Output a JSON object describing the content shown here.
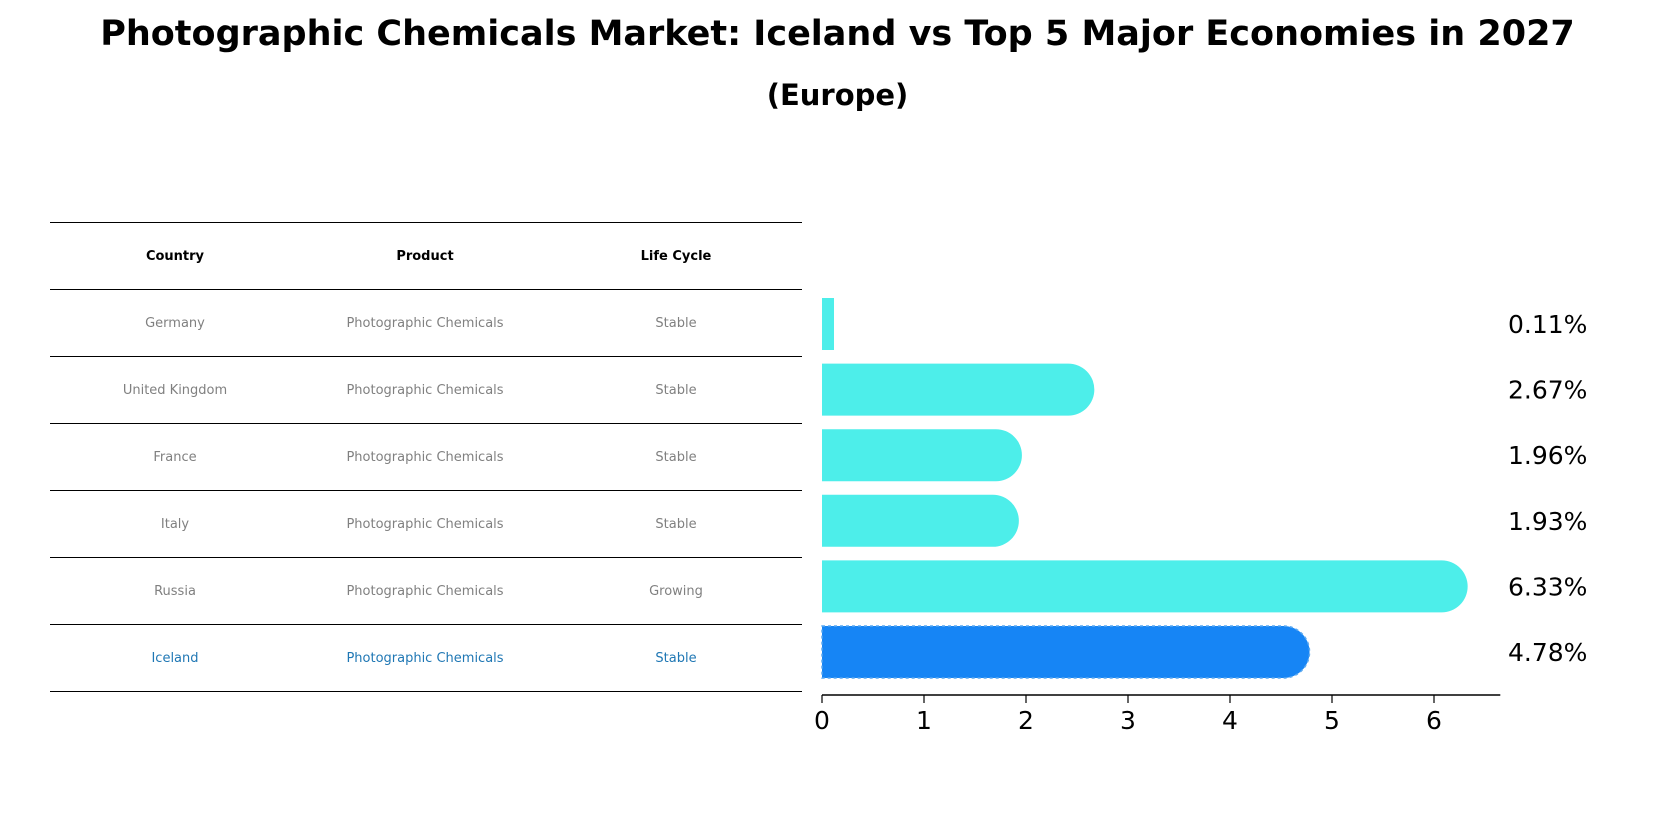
{
  "title": "Photographic Chemicals Market: Iceland vs Top 5 Major Economies in 2027",
  "subtitle": "(Europe)",
  "table": {
    "headers": [
      "Country",
      "Product",
      "Life Cycle"
    ],
    "rows": [
      [
        "Germany",
        "Photographic Chemicals",
        "Stable"
      ],
      [
        "United Kingdom",
        "Photographic Chemicals",
        "Stable"
      ],
      [
        "France",
        "Photographic Chemicals",
        "Stable"
      ],
      [
        "Italy",
        "Photographic Chemicals",
        "Stable"
      ],
      [
        "Russia",
        "Photographic Chemicals",
        "Growing"
      ],
      [
        "Iceland",
        "Photographic Chemicals",
        "Stable"
      ]
    ],
    "highlight_color": "#1f77b4",
    "text_color": "#808080"
  },
  "chart_data": {
    "type": "bar",
    "orientation": "horizontal",
    "categories": [
      "Germany",
      "United Kingdom",
      "France",
      "Italy",
      "Russia",
      "Iceland"
    ],
    "values": [
      0.11,
      2.67,
      1.96,
      1.93,
      6.33,
      4.78
    ],
    "value_labels": [
      "0.11%",
      "2.67%",
      "1.96%",
      "1.93%",
      "6.33%",
      "4.78%"
    ],
    "highlight": "Iceland",
    "xlim": [
      0,
      6.65
    ],
    "xticks": [
      0,
      1,
      2,
      3,
      4,
      5,
      6
    ],
    "colors": {
      "default": "#4deeea",
      "highlight": "#1685f5"
    },
    "grid": false
  }
}
